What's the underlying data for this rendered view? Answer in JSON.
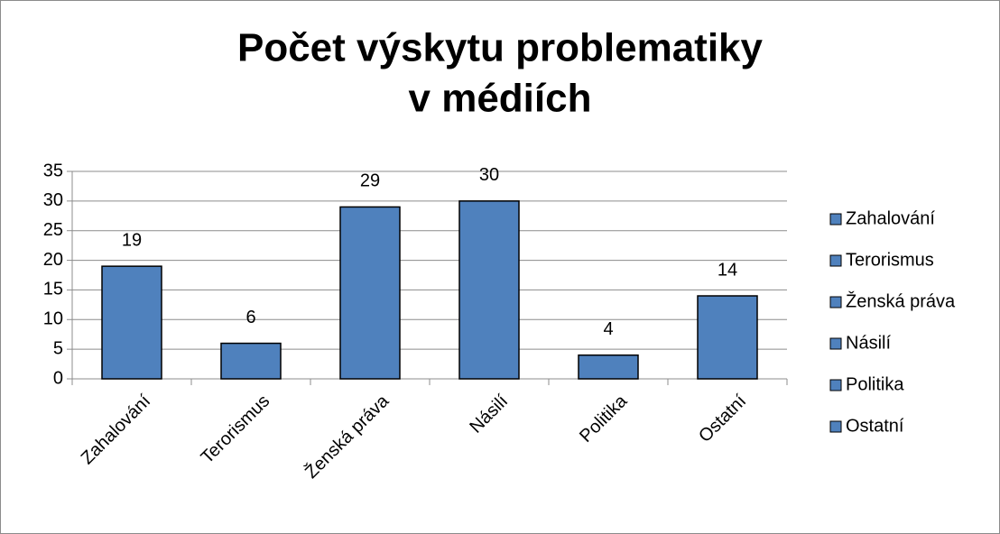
{
  "chart_data": {
    "type": "bar",
    "title": [
      "Počet výskytu problematiky",
      "v médiích"
    ],
    "categories": [
      "Zahalování",
      "Terorismus",
      "Ženská práva",
      "Násilí",
      "Politika",
      "Ostatní"
    ],
    "values": [
      19,
      6,
      29,
      30,
      4,
      14
    ],
    "color": "#4f81bd",
    "ylim": [
      0,
      35
    ],
    "yticks": [
      0,
      5,
      10,
      15,
      20,
      25,
      30,
      35
    ],
    "grid": true,
    "legend": "right"
  }
}
